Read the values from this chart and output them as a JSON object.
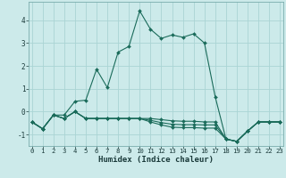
{
  "xlabel": "Humidex (Indice chaleur)",
  "background_color": "#cceaea",
  "grid_color": "#aad4d4",
  "line_color": "#1a6b5a",
  "x_values": [
    0,
    1,
    2,
    3,
    4,
    5,
    6,
    7,
    8,
    9,
    10,
    11,
    12,
    13,
    14,
    15,
    16,
    17,
    18,
    19,
    20,
    21,
    22,
    23
  ],
  "series": [
    [
      -0.45,
      -0.75,
      -0.15,
      -0.15,
      0.45,
      0.5,
      1.85,
      1.05,
      2.6,
      2.85,
      4.4,
      3.6,
      3.2,
      3.35,
      3.25,
      3.4,
      3.0,
      0.65,
      -1.2,
      -1.3,
      -0.85,
      -0.45,
      -0.45,
      -0.45
    ],
    [
      -0.45,
      -0.75,
      -0.15,
      -0.3,
      0.0,
      -0.3,
      -0.3,
      -0.3,
      -0.3,
      -0.3,
      -0.3,
      -0.3,
      -0.35,
      -0.4,
      -0.42,
      -0.42,
      -0.45,
      -0.45,
      -1.2,
      -1.3,
      -0.85,
      -0.45,
      -0.45,
      -0.45
    ],
    [
      -0.45,
      -0.75,
      -0.15,
      -0.3,
      0.0,
      -0.3,
      -0.3,
      -0.3,
      -0.3,
      -0.3,
      -0.3,
      -0.38,
      -0.48,
      -0.55,
      -0.57,
      -0.57,
      -0.58,
      -0.58,
      -1.2,
      -1.3,
      -0.85,
      -0.45,
      -0.45,
      -0.45
    ],
    [
      -0.45,
      -0.75,
      -0.15,
      -0.3,
      0.0,
      -0.3,
      -0.3,
      -0.3,
      -0.3,
      -0.3,
      -0.3,
      -0.45,
      -0.58,
      -0.68,
      -0.7,
      -0.7,
      -0.72,
      -0.72,
      -1.2,
      -1.3,
      -0.85,
      -0.45,
      -0.45,
      -0.45
    ]
  ],
  "ylim": [
    -1.5,
    4.8
  ],
  "xlim": [
    -0.3,
    23.3
  ],
  "yticks": [
    -1,
    0,
    1,
    2,
    3,
    4
  ],
  "xticks": [
    0,
    1,
    2,
    3,
    4,
    5,
    6,
    7,
    8,
    9,
    10,
    11,
    12,
    13,
    14,
    15,
    16,
    17,
    18,
    19,
    20,
    21,
    22,
    23
  ]
}
